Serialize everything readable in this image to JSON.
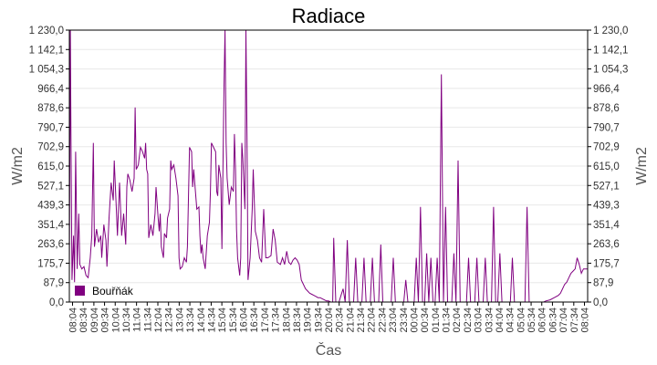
{
  "chart_data": {
    "type": "line",
    "title": "Radiace",
    "xlabel": "Čas",
    "ylabel": "W/m2",
    "ylabel_right": "W/m2",
    "ylim": [
      0,
      1230.0
    ],
    "grid": true,
    "legend_position": "bottom-left inside plot",
    "y_ticks": [
      "0,0",
      "87,9",
      "175,7",
      "263,6",
      "351,4",
      "439,3",
      "527,1",
      "615,0",
      "702,9",
      "790,7",
      "878,6",
      "966,4",
      "1 054,3",
      "1 142,1",
      "1 230,0"
    ],
    "x_ticks": [
      "08:04",
      "08:34",
      "09:04",
      "09:34",
      "10:04",
      "10:34",
      "11:04",
      "11:34",
      "12:04",
      "12:34",
      "13:04",
      "13:34",
      "14:04",
      "14:34",
      "15:04",
      "15:34",
      "16:04",
      "16:34",
      "17:04",
      "17:34",
      "18:04",
      "18:34",
      "19:04",
      "19:34",
      "20:04",
      "20:34",
      "21:04",
      "21:34",
      "22:04",
      "22:34",
      "23:04",
      "23:34",
      "00:04",
      "00:34",
      "01:04",
      "01:34",
      "02:04",
      "02:34",
      "03:04",
      "03:34",
      "04:04",
      "04:34",
      "05:04",
      "05:34",
      "06:04",
      "06:34",
      "07:04",
      "07:34",
      "08:04"
    ],
    "series": [
      {
        "name": "Bouřňák",
        "color": "#800080",
        "points": [
          [
            0.0,
            120
          ],
          [
            0.1,
            1230
          ],
          [
            0.15,
            800
          ],
          [
            0.25,
            100
          ],
          [
            0.4,
            300
          ],
          [
            0.5,
            90
          ],
          [
            0.6,
            680
          ],
          [
            0.75,
            150
          ],
          [
            0.9,
            400
          ],
          [
            1.0,
            170
          ],
          [
            1.2,
            150
          ],
          [
            1.4,
            160
          ],
          [
            1.6,
            120
          ],
          [
            1.8,
            110
          ],
          [
            2.0,
            200
          ],
          [
            2.15,
            300
          ],
          [
            2.3,
            720
          ],
          [
            2.4,
            250
          ],
          [
            2.6,
            330
          ],
          [
            2.8,
            270
          ],
          [
            3.0,
            300
          ],
          [
            3.1,
            200
          ],
          [
            3.3,
            350
          ],
          [
            3.5,
            280
          ],
          [
            3.6,
            160
          ],
          [
            3.8,
            380
          ],
          [
            4.0,
            540
          ],
          [
            4.2,
            460
          ],
          [
            4.3,
            640
          ],
          [
            4.5,
            420
          ],
          [
            4.6,
            300
          ],
          [
            4.8,
            540
          ],
          [
            5.0,
            300
          ],
          [
            5.2,
            400
          ],
          [
            5.4,
            260
          ],
          [
            5.5,
            520
          ],
          [
            5.6,
            580
          ],
          [
            5.8,
            550
          ],
          [
            6.0,
            500
          ],
          [
            6.2,
            560
          ],
          [
            6.3,
            880
          ],
          [
            6.4,
            600
          ],
          [
            6.6,
            620
          ],
          [
            6.8,
            700
          ],
          [
            7.0,
            680
          ],
          [
            7.2,
            650
          ],
          [
            7.3,
            720
          ],
          [
            7.4,
            600
          ],
          [
            7.5,
            580
          ],
          [
            7.6,
            290
          ],
          [
            7.8,
            350
          ],
          [
            8.0,
            300
          ],
          [
            8.2,
            400
          ],
          [
            8.3,
            520
          ],
          [
            8.5,
            380
          ],
          [
            8.6,
            320
          ],
          [
            8.7,
            400
          ],
          [
            8.8,
            250
          ],
          [
            9.0,
            200
          ],
          [
            9.1,
            310
          ],
          [
            9.3,
            290
          ],
          [
            9.4,
            380
          ],
          [
            9.6,
            420
          ],
          [
            9.7,
            640
          ],
          [
            9.8,
            600
          ],
          [
            10.0,
            620
          ],
          [
            10.2,
            560
          ],
          [
            10.4,
            480
          ],
          [
            10.5,
            200
          ],
          [
            10.6,
            150
          ],
          [
            10.8,
            160
          ],
          [
            11.0,
            200
          ],
          [
            11.2,
            180
          ],
          [
            11.3,
            250
          ],
          [
            11.5,
            700
          ],
          [
            11.7,
            680
          ],
          [
            11.8,
            520
          ],
          [
            11.9,
            600
          ],
          [
            12.0,
            540
          ],
          [
            12.2,
            420
          ],
          [
            12.4,
            430
          ],
          [
            12.5,
            300
          ],
          [
            12.6,
            220
          ],
          [
            12.7,
            260
          ],
          [
            12.8,
            200
          ],
          [
            13.0,
            150
          ],
          [
            13.2,
            300
          ],
          [
            13.4,
            360
          ],
          [
            13.5,
            500
          ],
          [
            13.6,
            720
          ],
          [
            13.8,
            700
          ],
          [
            14.0,
            680
          ],
          [
            14.1,
            500
          ],
          [
            14.2,
            480
          ],
          [
            14.3,
            620
          ],
          [
            14.5,
            560
          ],
          [
            14.6,
            240
          ],
          [
            14.8,
            980
          ],
          [
            14.9,
            1230
          ],
          [
            15.0,
            720
          ],
          [
            15.1,
            560
          ],
          [
            15.3,
            440
          ],
          [
            15.5,
            520
          ],
          [
            15.7,
            500
          ],
          [
            15.8,
            760
          ],
          [
            15.9,
            600
          ],
          [
            16.0,
            330
          ],
          [
            16.1,
            200
          ],
          [
            16.3,
            120
          ],
          [
            16.4,
            200
          ],
          [
            16.5,
            720
          ],
          [
            16.6,
            650
          ],
          [
            16.8,
            420
          ],
          [
            16.9,
            1230
          ],
          [
            17.0,
            750
          ],
          [
            17.1,
            100
          ],
          [
            17.3,
            200
          ],
          [
            17.5,
            420
          ],
          [
            17.6,
            600
          ],
          [
            17.8,
            320
          ],
          [
            18.0,
            280
          ],
          [
            18.2,
            200
          ],
          [
            18.4,
            180
          ],
          [
            18.6,
            420
          ],
          [
            18.8,
            200
          ],
          [
            19.0,
            200
          ],
          [
            19.3,
            210
          ],
          [
            19.5,
            330
          ],
          [
            19.7,
            280
          ],
          [
            19.9,
            180
          ],
          [
            20.2,
            170
          ],
          [
            20.4,
            200
          ],
          [
            20.6,
            170
          ],
          [
            20.8,
            230
          ],
          [
            21.0,
            180
          ],
          [
            21.2,
            170
          ],
          [
            21.4,
            190
          ],
          [
            21.6,
            200
          ],
          [
            21.8,
            190
          ],
          [
            22.0,
            170
          ],
          [
            22.2,
            100
          ],
          [
            22.4,
            80
          ],
          [
            22.6,
            60
          ],
          [
            22.8,
            50
          ],
          [
            23.0,
            40
          ],
          [
            23.2,
            35
          ],
          [
            23.4,
            30
          ],
          [
            23.6,
            25
          ],
          [
            23.8,
            20
          ],
          [
            24.0,
            20
          ],
          [
            24.2,
            15
          ],
          [
            24.4,
            10
          ],
          [
            24.6,
            5
          ],
          [
            24.8,
            5
          ],
          [
            25.0,
            0
          ],
          [
            25.2,
            0
          ],
          [
            25.3,
            290
          ],
          [
            25.5,
            0
          ],
          [
            25.8,
            0
          ],
          [
            26.0,
            30
          ],
          [
            26.2,
            60
          ],
          [
            26.4,
            0
          ],
          [
            26.6,
            280
          ],
          [
            26.8,
            0
          ],
          [
            27.2,
            0
          ],
          [
            27.4,
            200
          ],
          [
            27.6,
            0
          ],
          [
            28.0,
            0
          ],
          [
            28.2,
            200
          ],
          [
            28.4,
            0
          ],
          [
            28.8,
            0
          ],
          [
            29.0,
            200
          ],
          [
            29.2,
            0
          ],
          [
            29.6,
            0
          ],
          [
            29.8,
            260
          ],
          [
            30.0,
            0
          ],
          [
            30.8,
            0
          ],
          [
            31.0,
            200
          ],
          [
            31.2,
            0
          ],
          [
            32.0,
            0
          ],
          [
            32.2,
            100
          ],
          [
            32.4,
            0
          ],
          [
            33.0,
            0
          ],
          [
            33.2,
            200
          ],
          [
            33.4,
            0
          ],
          [
            33.6,
            430
          ],
          [
            33.8,
            0
          ],
          [
            34.0,
            0
          ],
          [
            34.2,
            220
          ],
          [
            34.4,
            0
          ],
          [
            34.6,
            200
          ],
          [
            34.8,
            0
          ],
          [
            35.0,
            0
          ],
          [
            35.2,
            200
          ],
          [
            35.4,
            0
          ],
          [
            35.6,
            1030
          ],
          [
            35.8,
            0
          ],
          [
            36.0,
            430
          ],
          [
            36.2,
            0
          ],
          [
            36.6,
            0
          ],
          [
            36.8,
            220
          ],
          [
            37.0,
            0
          ],
          [
            37.2,
            640
          ],
          [
            37.4,
            0
          ],
          [
            38.0,
            0
          ],
          [
            38.2,
            200
          ],
          [
            38.4,
            0
          ],
          [
            38.8,
            0
          ],
          [
            39.0,
            200
          ],
          [
            39.2,
            0
          ],
          [
            39.6,
            0
          ],
          [
            39.8,
            200
          ],
          [
            40.0,
            0
          ],
          [
            40.4,
            0
          ],
          [
            40.6,
            430
          ],
          [
            40.8,
            0
          ],
          [
            41.0,
            0
          ],
          [
            41.2,
            220
          ],
          [
            41.4,
            0
          ],
          [
            42.2,
            0
          ],
          [
            42.4,
            200
          ],
          [
            42.6,
            0
          ],
          [
            43.6,
            0
          ],
          [
            43.8,
            430
          ],
          [
            44.0,
            0
          ],
          [
            45.4,
            0
          ],
          [
            45.6,
            5
          ],
          [
            46.0,
            10
          ],
          [
            46.4,
            20
          ],
          [
            46.8,
            30
          ],
          [
            47.0,
            40
          ],
          [
            47.2,
            60
          ],
          [
            47.4,
            80
          ],
          [
            47.6,
            90
          ],
          [
            47.8,
            110
          ],
          [
            48.0,
            130
          ],
          [
            48.2,
            140
          ],
          [
            48.4,
            150
          ],
          [
            48.6,
            200
          ],
          [
            48.8,
            170
          ],
          [
            49.0,
            130
          ],
          [
            49.2,
            150
          ],
          [
            49.4,
            150
          ],
          [
            49.6,
            150
          ]
        ]
      }
    ],
    "notes": "x in half-hour units from 08:04 (0) to 08:04 next day (48); values estimated from pixels, spiky radiation series"
  },
  "legend": {
    "items": [
      {
        "label": "Bouřňák",
        "color": "#800080"
      }
    ]
  }
}
